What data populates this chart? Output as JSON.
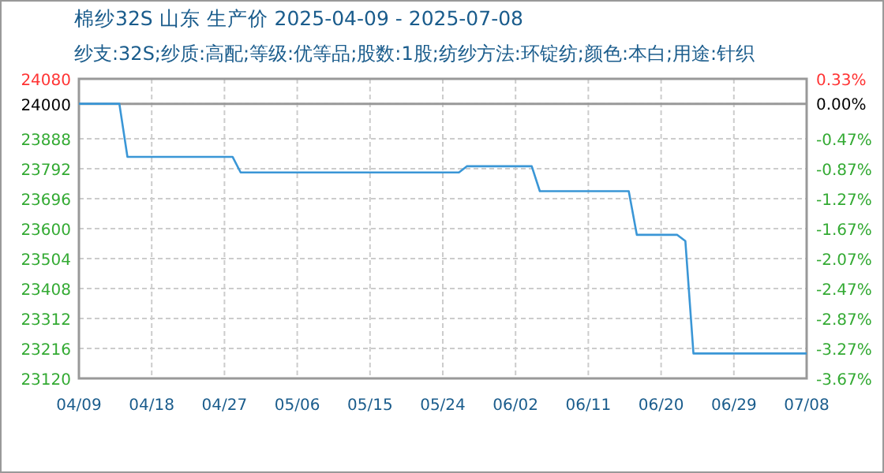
{
  "chart_data": {
    "type": "line",
    "title": "棉纱32S 山东 生产价 2025-04-09 - 2025-07-08",
    "subtitle": "纱支:32S;纱质:高配;等级:优等品;股数:1股;纺纱方法:环锭纺;颜色:本白;用途:针织",
    "series": [
      {
        "color": "#3a96d6",
        "x": [
          "2025-04-09",
          "2025-04-14",
          "2025-04-15",
          "2025-04-28",
          "2025-04-29",
          "2025-05-26",
          "2025-05-27",
          "2025-06-04",
          "2025-06-05",
          "2025-06-16",
          "2025-06-17",
          "2025-06-22",
          "2025-06-23",
          "2025-06-24",
          "2025-07-08"
        ],
        "values": [
          24000,
          24000,
          23830,
          23830,
          23780,
          23780,
          23800,
          23800,
          23720,
          23720,
          23580,
          23580,
          23560,
          23200,
          23200
        ]
      }
    ],
    "xlim": [
      "2025-04-09",
      "2025-07-08"
    ],
    "xticks": [
      {
        "value": "2025-04-09",
        "label": "04/09"
      },
      {
        "value": "2025-04-18",
        "label": "04/18"
      },
      {
        "value": "2025-04-27",
        "label": "04/27"
      },
      {
        "value": "2025-05-06",
        "label": "05/06"
      },
      {
        "value": "2025-05-15",
        "label": "05/15"
      },
      {
        "value": "2025-05-24",
        "label": "05/24"
      },
      {
        "value": "2025-06-02",
        "label": "06/02"
      },
      {
        "value": "2025-06-11",
        "label": "06/11"
      },
      {
        "value": "2025-06-20",
        "label": "06/20"
      },
      {
        "value": "2025-06-29",
        "label": "06/29"
      },
      {
        "value": "2025-07-08",
        "label": "07/08"
      }
    ],
    "ylim": [
      23120,
      24080
    ],
    "yticks": [
      24080,
      24000,
      23888,
      23792,
      23696,
      23600,
      23504,
      23408,
      23312,
      23216,
      23120
    ],
    "y2lim": [
      -3.67,
      0.33
    ],
    "y2ticks": [
      {
        "value": 0.33,
        "label": "0.33%"
      },
      {
        "value": 0,
        "label": "0.00%"
      },
      {
        "value": -0.47,
        "label": "-0.47%"
      },
      {
        "value": -0.87,
        "label": "-0.87%"
      },
      {
        "value": -1.27,
        "label": "-1.27%"
      },
      {
        "value": -1.67,
        "label": "-1.67%"
      },
      {
        "value": -2.07,
        "label": "-2.07%"
      },
      {
        "value": -2.47,
        "label": "-2.47%"
      },
      {
        "value": -2.87,
        "label": "-2.87%"
      },
      {
        "value": -3.27,
        "label": "-3.27%"
      },
      {
        "value": -3.67,
        "label": "-3.67%"
      }
    ],
    "ref_lines": [
      {
        "axis": "y",
        "value": 24000,
        "color": "#999999"
      }
    ],
    "grid": true,
    "marker": "none",
    "line_style": "solid"
  }
}
